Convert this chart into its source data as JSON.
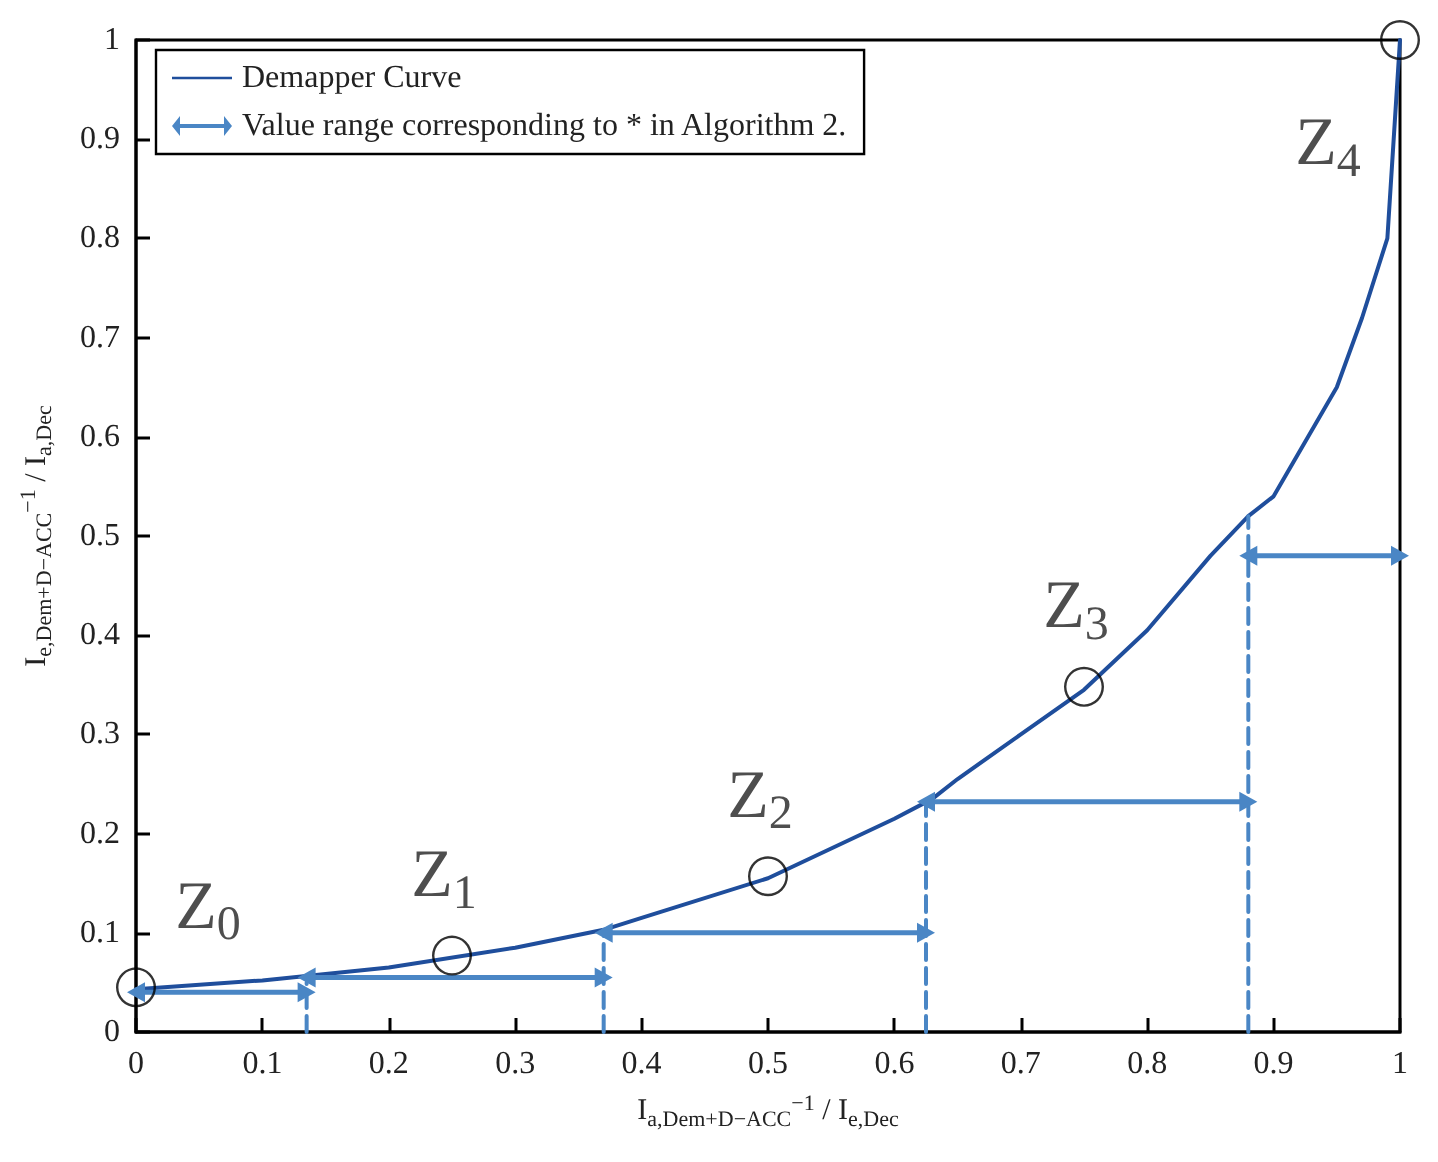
{
  "chart_data": {
    "type": "line",
    "xlabel": "I$_{a,Dem+D−ACC}$$^{−1}$ / I$_{e,Dec}$",
    "ylabel": "I$_{e,Dem+D−ACC}$$^{−1}$ / I$_{a,Dec}$",
    "xlim": [
      0,
      1
    ],
    "xticks": [
      0,
      0.1,
      0.2,
      0.3,
      0.4,
      0.5,
      0.6,
      0.7,
      0.8,
      0.9,
      1
    ],
    "ylim": [
      0,
      1
    ],
    "yticks": [
      0,
      0.1,
      0.2,
      0.3,
      0.4,
      0.5,
      0.6,
      0.7,
      0.8,
      0.9,
      1
    ],
    "grid": false,
    "legend": "top left",
    "series": [
      {
        "name": "Demapper Curve",
        "color": "#1f4e9c",
        "marker": "none",
        "line_style": "solid",
        "x": [
          0,
          0.1,
          0.2,
          0.3,
          0.37,
          0.4,
          0.5,
          0.6,
          0.63,
          0.65,
          0.7,
          0.75,
          0.8,
          0.85,
          0.88,
          0.9,
          0.95,
          0.97,
          0.99,
          1
        ],
        "values": [
          0.043,
          0.052,
          0.065,
          0.085,
          0.103,
          0.115,
          0.155,
          0.215,
          0.235,
          0.255,
          0.3,
          0.345,
          0.405,
          0.48,
          0.52,
          0.54,
          0.65,
          0.72,
          0.8,
          1
        ]
      },
      {
        "name": "Value range corresponding to * in Algorithm 2.",
        "color": "#4a86c5",
        "marker": "triangle",
        "line_style": "solid",
        "x": [
          0,
          0.135,
          null,
          0.135,
          0.37,
          null,
          0.37,
          0.625,
          null,
          0.625,
          0.88,
          null,
          0.88,
          1
        ],
        "values": [
          0.04,
          0.04,
          null,
          0.055,
          0.055,
          null,
          0.1,
          0.1,
          null,
          0.232,
          0.232,
          null,
          0.48,
          0.48
        ]
      },
      {
        "color": "#4a86c5",
        "marker": "none",
        "line_style": "dashed",
        "x": [
          0.135,
          0.135,
          null,
          0.37,
          0.37,
          null,
          0.625,
          0.625,
          null,
          0.88,
          0.88
        ],
        "values": [
          0,
          0.05,
          null,
          0,
          0.103,
          null,
          0,
          0.235,
          null,
          0,
          0.52
        ]
      },
      {
        "type": "scatter",
        "color": "#000000",
        "marker": "circle",
        "x": [
          0,
          0.25,
          0.5,
          0.75,
          1
        ],
        "values": [
          0.045,
          0.077,
          0.157,
          0.348,
          1
        ]
      }
    ],
    "annotations": [
      {
        "text": "Z$_{0}$",
        "x": 0,
        "y": 0.045
      },
      {
        "text": "Z$_{1}$",
        "x": 0.25,
        "y": 0.077
      },
      {
        "text": "Z$_{2}$",
        "x": 0.5,
        "y": 0.157
      },
      {
        "text": "Z$_{3}$",
        "x": 0.75,
        "y": 0.348
      },
      {
        "text": "Z$_{4}$",
        "x": 1,
        "y": 1
      }
    ]
  }
}
